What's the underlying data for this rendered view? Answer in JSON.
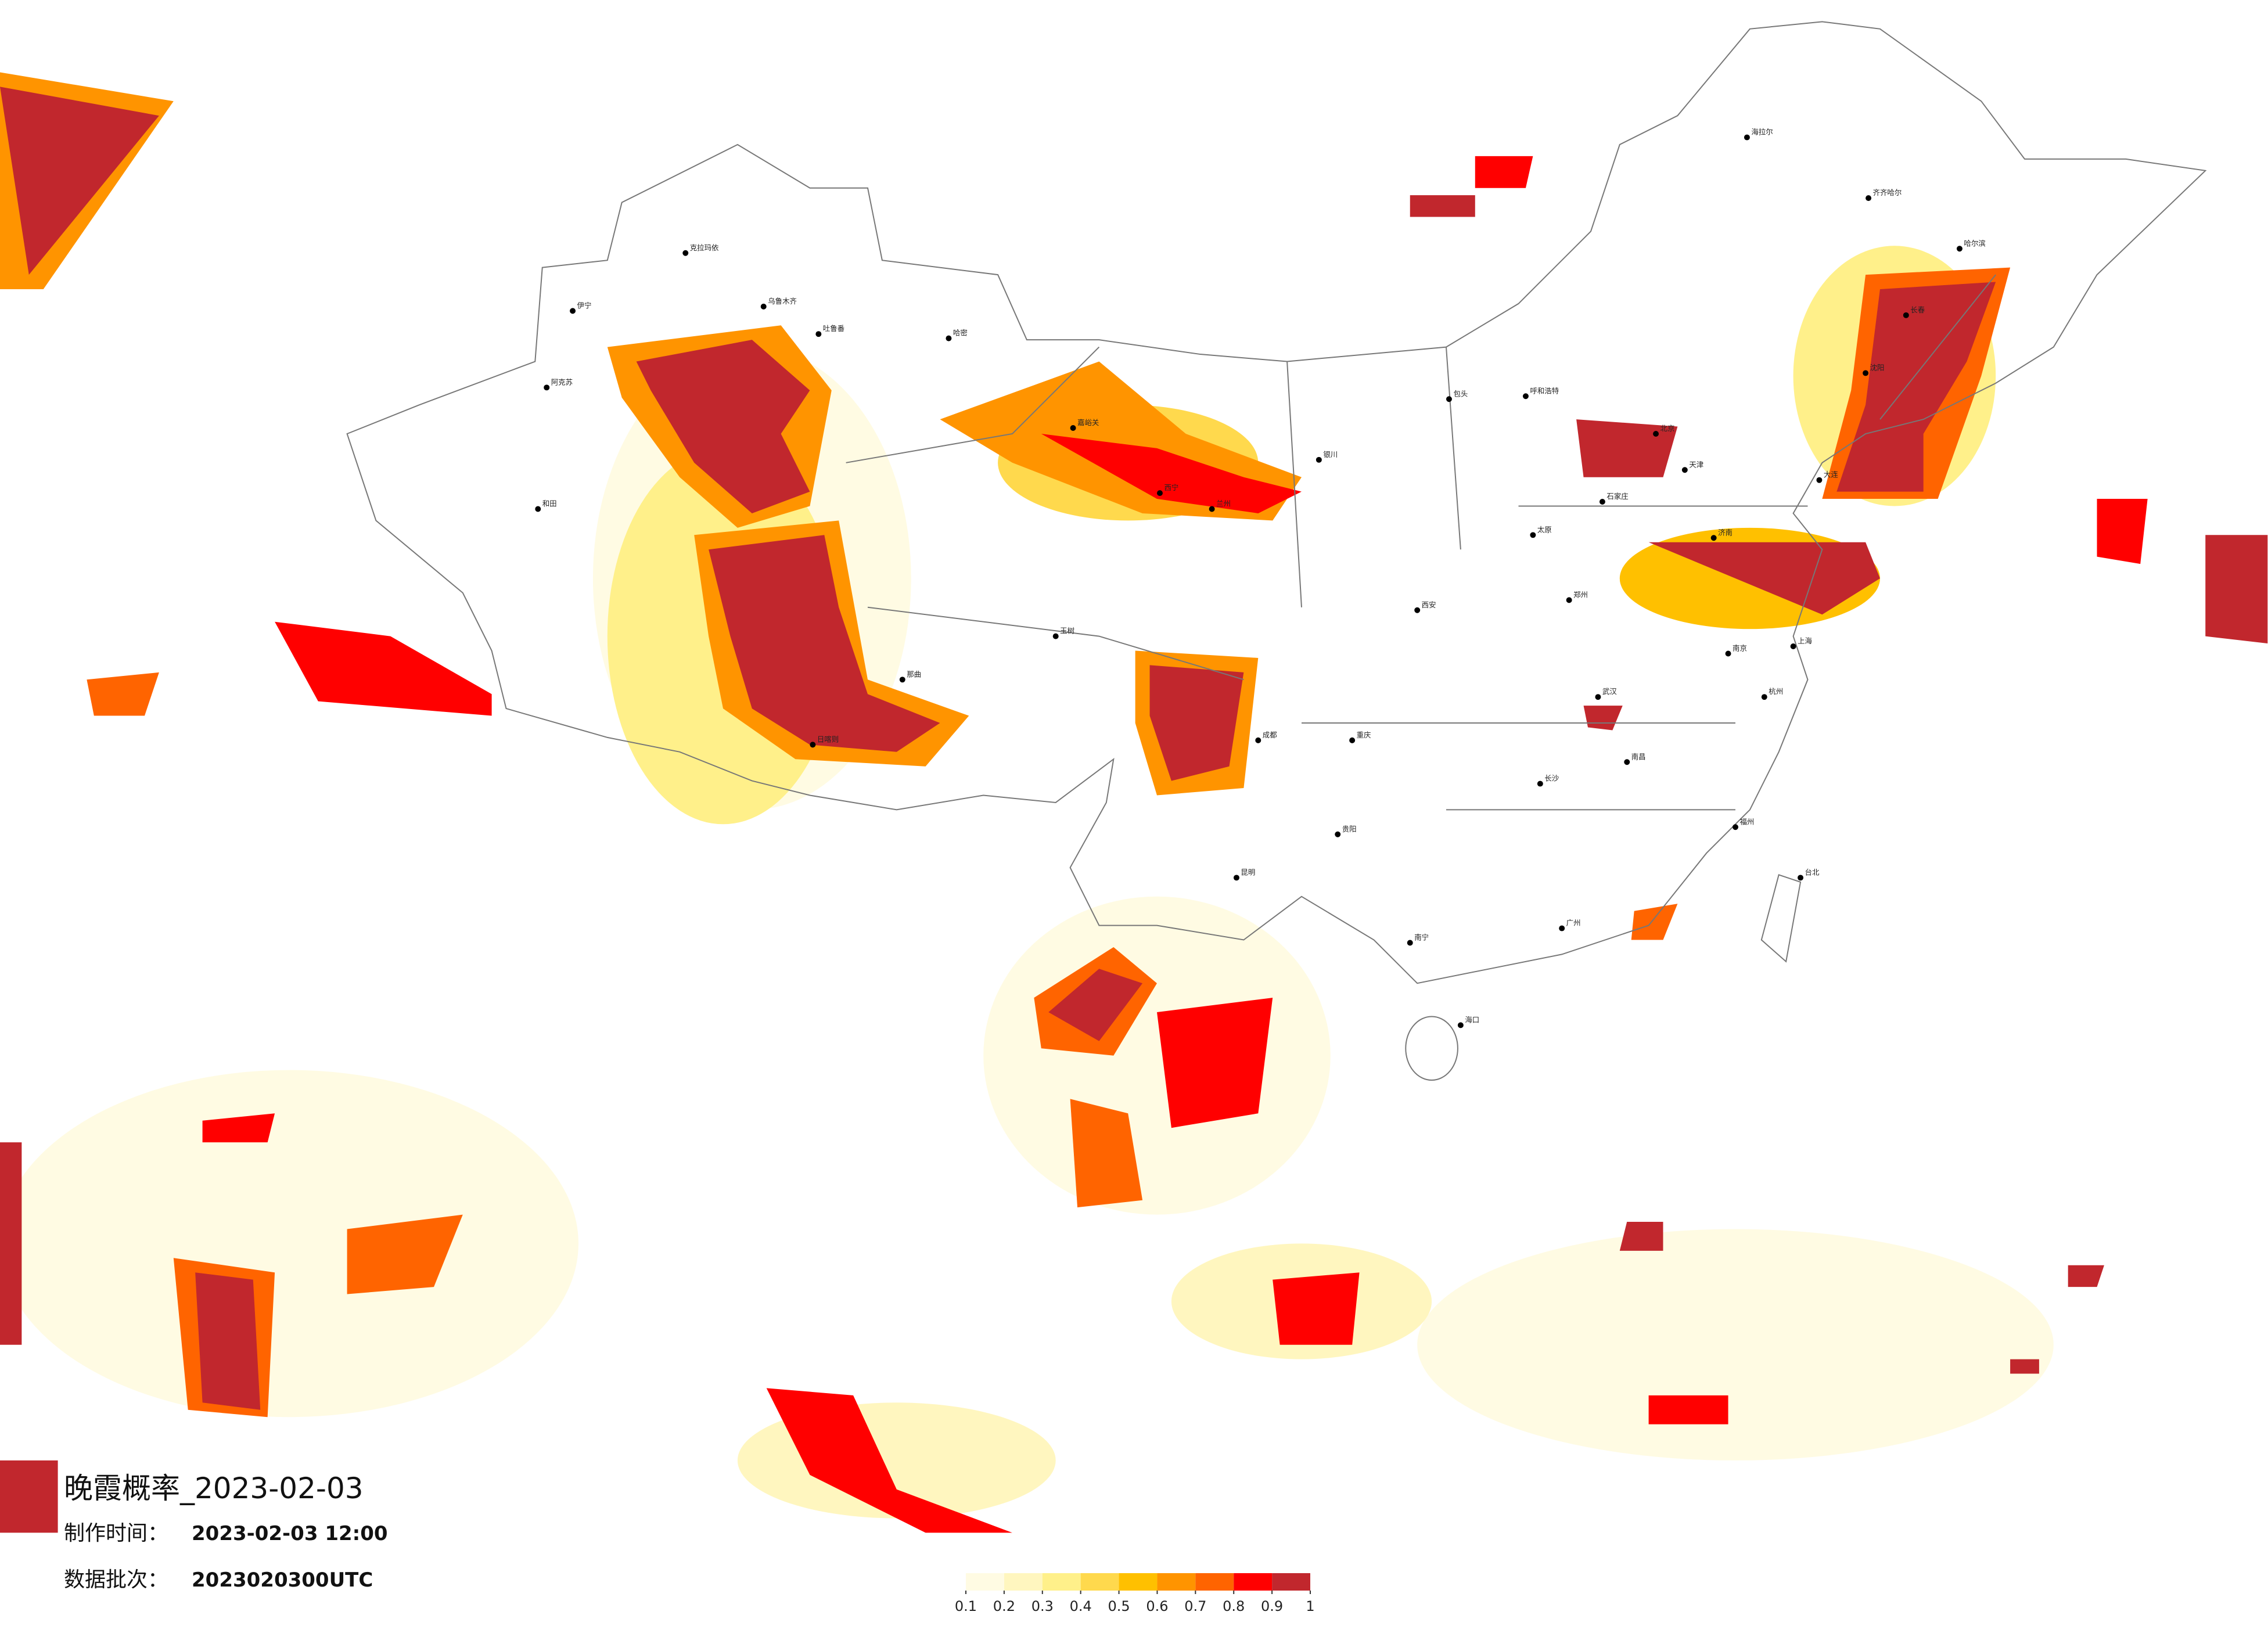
{
  "title": "晚霞概率_2023-02-03",
  "production_time": {
    "label": "制作时间：",
    "value": "2023-02-03 12:00"
  },
  "batch": {
    "label": "数据批次：",
    "value": "2023020300UTC"
  },
  "legend": {
    "colors": [
      "#fffbe3",
      "#fff6bf",
      "#fff08a",
      "#ffd94d",
      "#ffc000",
      "#ff9400",
      "#ff6400",
      "#ff0000",
      "#c1272d"
    ],
    "ticks": [
      0.1,
      0.2,
      0.3,
      0.4,
      0.5,
      0.6,
      0.7,
      0.8,
      0.9,
      1
    ]
  },
  "cities": [
    {
      "name": "克拉玛依"
    },
    {
      "name": "乌鲁木齐"
    },
    {
      "name": "吐鲁番"
    },
    {
      "name": "伊宁"
    },
    {
      "name": "阿克苏"
    },
    {
      "name": "和田"
    },
    {
      "name": "哈密"
    },
    {
      "name": "日喀则"
    },
    {
      "name": "那曲"
    },
    {
      "name": "玉树"
    },
    {
      "name": "嘉峪关"
    },
    {
      "name": "西宁"
    },
    {
      "name": "兰州"
    },
    {
      "name": "银川"
    },
    {
      "name": "呼和浩特"
    },
    {
      "name": "包头"
    },
    {
      "name": "北京"
    },
    {
      "name": "天津"
    },
    {
      "name": "石家庄"
    },
    {
      "name": "太原"
    },
    {
      "name": "济南"
    },
    {
      "name": "郑州"
    },
    {
      "name": "西安"
    },
    {
      "name": "成都"
    },
    {
      "name": "重庆"
    },
    {
      "name": "武汉"
    },
    {
      "name": "南京"
    },
    {
      "name": "上海"
    },
    {
      "name": "杭州"
    },
    {
      "name": "长沙"
    },
    {
      "name": "南昌"
    },
    {
      "name": "福州"
    },
    {
      "name": "广州"
    },
    {
      "name": "南宁"
    },
    {
      "name": "昆明"
    },
    {
      "name": "贵阳"
    },
    {
      "name": "海口"
    },
    {
      "name": "台北"
    },
    {
      "name": "哈尔滨"
    },
    {
      "name": "长春"
    },
    {
      "name": "沈阳"
    },
    {
      "name": "大连"
    },
    {
      "name": "海拉尔"
    },
    {
      "name": "齐齐哈尔"
    }
  ]
}
